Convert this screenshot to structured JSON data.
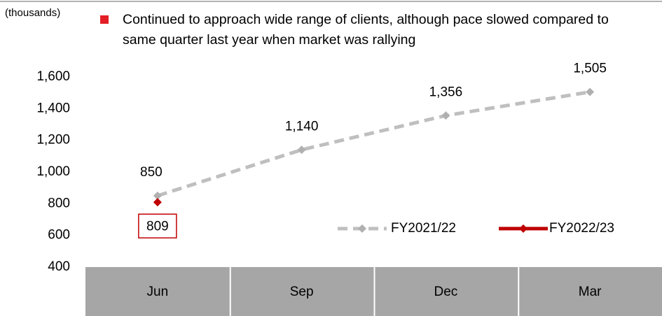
{
  "chart_data": {
    "type": "line",
    "unit_label": "(thousands)",
    "note": "Continued to approach wide range of clients, although pace slowed compared to same quarter last year when market was rallying",
    "categories": [
      "Jun",
      "Sep",
      "Dec",
      "Mar"
    ],
    "series": [
      {
        "name": "FY2021/22",
        "color": "#bfbfbf",
        "dashed": true,
        "values": [
          850,
          1140,
          1356,
          1505
        ],
        "value_labels": [
          "850",
          "1,140",
          "1,356",
          "1,505"
        ]
      },
      {
        "name": "FY2022/23",
        "color": "#c00000",
        "dashed": false,
        "values": [
          809,
          null,
          null,
          null
        ],
        "value_labels": [
          "809",
          null,
          null,
          null
        ]
      }
    ],
    "ylim": [
      400,
      1600
    ],
    "yticks": [
      400,
      600,
      800,
      {
        "value": 1000,
        "label": "1,000"
      },
      {
        "value": 1200,
        "label": "1,200"
      },
      {
        "value": 1400,
        "label": "1,400"
      },
      {
        "value": 1600,
        "label": "1,600"
      }
    ],
    "grid": false
  }
}
